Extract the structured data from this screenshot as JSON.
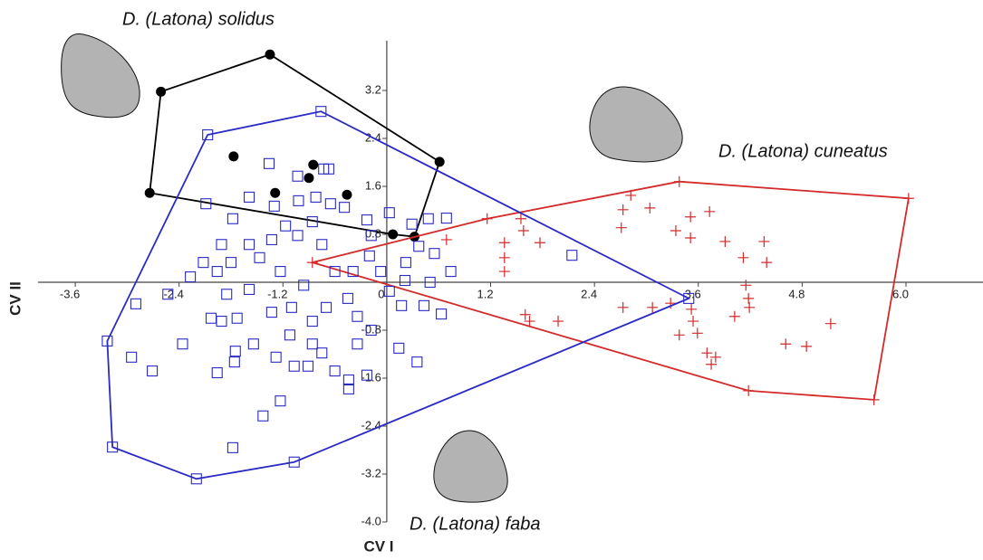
{
  "chart_data": {
    "type": "scatter",
    "x_label": "CV I",
    "y_label": "CV II",
    "xlim": [
      -4.03,
      6.89
    ],
    "ylim": [
      -4.0,
      4.03
    ],
    "xticks": [
      -3.6,
      -2.4,
      -1.2,
      0,
      1.2,
      2.4,
      3.6,
      4.8,
      {
        "value": 6.0,
        "label": "6.0"
      }
    ],
    "yticks": [
      {
        "value": -4.0,
        "label": "-4.0"
      },
      -3.2,
      -2.4,
      -1.6,
      -0.8,
      0.8,
      1.6,
      2.4,
      3.2
    ],
    "convex_hulls": true,
    "series": [
      {
        "name": "D. (Latona) solidus",
        "color": "#000000",
        "marker": "circle",
        "x": [
          -1.35,
          -2.61,
          -2.74,
          0.07,
          0.32,
          0.61,
          -1.77,
          -0.85,
          -0.9,
          -1.29,
          -0.46
        ],
        "y": [
          3.8,
          3.18,
          1.49,
          0.8,
          0.76,
          2.01,
          2.1,
          1.96,
          1.74,
          1.49,
          1.46
        ]
      },
      {
        "name": "D. (Latona) cuneatus",
        "color": "#d42a2a",
        "marker": "plus",
        "x": [
          3.38,
          6.03,
          5.63,
          4.18,
          -0.86,
          2.82,
          2.73,
          3.04,
          1.16,
          1.55,
          1.58,
          1.77,
          1.36,
          1.36,
          1.36,
          0.69,
          2.71,
          3.51,
          3.73,
          3.34,
          3.51,
          3.91,
          4.36,
          4.12,
          4.39,
          2.73,
          3.07,
          3.28,
          3.52,
          3.54,
          3.38,
          3.59,
          3.7,
          3.75,
          3.8,
          4.15,
          4.18,
          4.02,
          4.19,
          4.61,
          4.85,
          5.13,
          1.98,
          1.6,
          1.65
        ],
        "y": [
          1.68,
          1.4,
          -1.96,
          -1.81,
          0.33,
          1.45,
          1.21,
          1.24,
          1.06,
          1.06,
          0.86,
          0.66,
          0.66,
          0.41,
          0.18,
          0.71,
          0.91,
          1.09,
          1.18,
          0.86,
          0.74,
          0.68,
          0.68,
          0.41,
          0.33,
          -0.42,
          -0.42,
          -0.35,
          -0.45,
          -0.65,
          -0.88,
          -0.85,
          -1.18,
          -1.37,
          -1.25,
          -0.05,
          -0.27,
          -0.57,
          -0.42,
          -1.03,
          -1.07,
          -0.69,
          -0.65,
          -0.54,
          -0.65
        ]
      },
      {
        "name": "D. (Latona) faba",
        "color": "#2a2ac4",
        "marker": "square",
        "x": [
          -0.76,
          3.49,
          -1.07,
          -2.2,
          -3.17,
          -3.23,
          -2.07,
          -1.36,
          -1.03,
          -0.73,
          -0.67,
          -2.09,
          -1.78,
          -1.59,
          -1.3,
          -1.02,
          -0.82,
          -0.65,
          -0.49,
          -0.23,
          0.03,
          0.29,
          0.48,
          0.69,
          0.37,
          0.74,
          0.5,
          0.21,
          0.17,
          0.43,
          0.63,
          2.14,
          -2.27,
          -2.9,
          -2.53,
          -2.95,
          -2.71,
          -2.36,
          -1.96,
          -1.8,
          -1.73,
          -1.59,
          -1.47,
          -1.33,
          -1.23,
          -1.1,
          -0.96,
          -0.86,
          -0.75,
          -0.6,
          -0.45,
          -0.34,
          -0.2,
          -0.18,
          -0.07,
          -0.44,
          -0.23,
          -0.44,
          -0.75,
          -0.91,
          -1.07,
          -1.28,
          -1.75,
          -1.96,
          -1.76,
          -1.91,
          -2.03,
          -1.43,
          -1.23,
          -1.78,
          0.35,
          0.14,
          -0.34,
          -0.6,
          -1.17,
          -1.03,
          -0.86,
          -1.59,
          -1.91,
          -2.12,
          -0.39,
          0.03,
          0.22,
          0.55,
          -0.18,
          -0.7,
          -1.33,
          -1.54,
          -1.12,
          -0.86,
          -1.85
        ],
        "y": [
          2.85,
          -0.27,
          -3.0,
          -3.28,
          -2.75,
          -0.98,
          2.46,
          1.98,
          1.77,
          1.89,
          1.89,
          1.31,
          1.06,
          1.42,
          1.27,
          1.36,
          1.42,
          1.31,
          1.25,
          1.04,
          1.16,
          0.97,
          1.06,
          1.07,
          0.6,
          0.18,
          0,
          0.03,
          -0.39,
          -0.39,
          -0.53,
          0.45,
          0.09,
          -0.36,
          -0.2,
          -1.25,
          -1.48,
          -1.03,
          0.18,
          0.33,
          -0.6,
          -0.12,
          0.41,
          0.71,
          0.18,
          -0.42,
          -0.05,
          -0.65,
          0.63,
          0.18,
          -0.27,
          -0.57,
          0.44,
          -0.8,
          0.18,
          -1.63,
          -1.55,
          -1.78,
          -1.18,
          -1.4,
          -1.4,
          -1.25,
          -1.15,
          -1.51,
          -1.33,
          -0.65,
          -0.6,
          -2.23,
          -1.98,
          -2.76,
          -1.33,
          -1.1,
          -1.03,
          -1.48,
          0.94,
          0.78,
          1.01,
          0.63,
          0.63,
          0.33,
          0.18,
          -0.15,
          0.33,
          0.48,
          0.78,
          -0.42,
          -0.5,
          -1.03,
          -0.88,
          -1.03,
          -0.2
        ]
      }
    ]
  }
}
